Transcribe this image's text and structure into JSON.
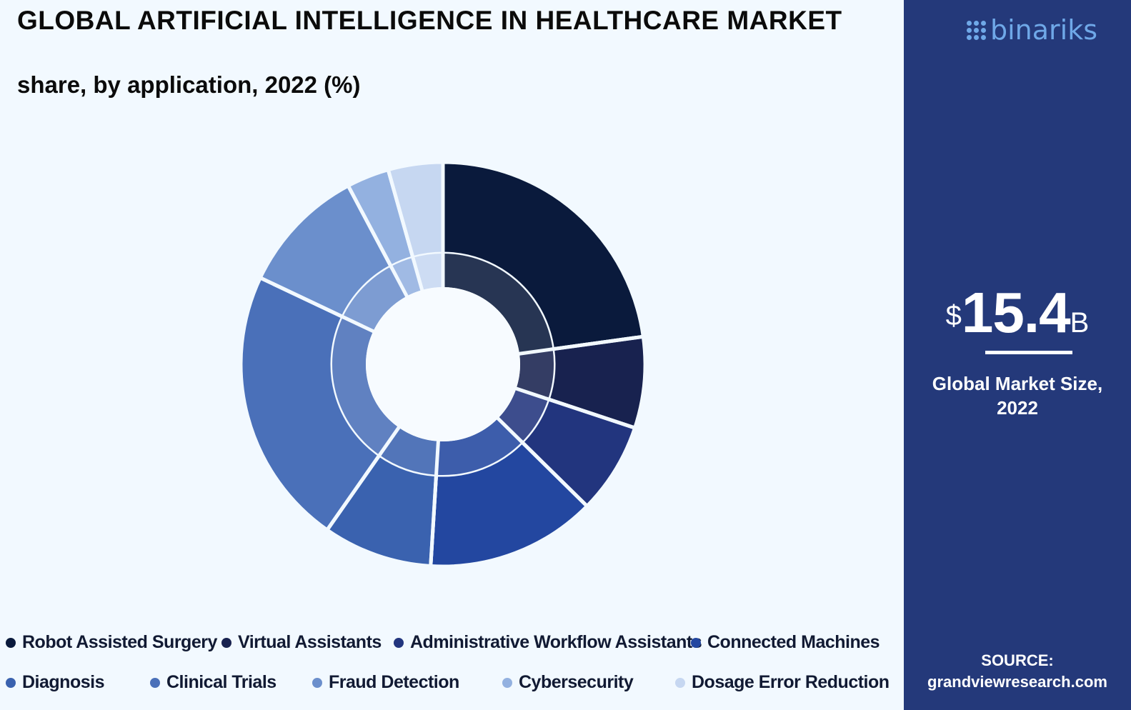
{
  "title": "GLOBAL ARTIFICIAL INTELLIGENCE IN HEALTHCARE MARKET",
  "subtitle": "share, by application, 2022 (%)",
  "chart_data": {
    "type": "pie",
    "donut": true,
    "categories": [
      "Robot Assisted Surgery",
      "Virtual Assistants",
      "Administrative Workflow Assistants",
      "Connected Machines",
      "Diagnosis",
      "Clinical Trials",
      "Fraud Detection",
      "Cybersecurity",
      "Dosage Error Reduction"
    ],
    "values": [
      23.5,
      7.5,
      7.5,
      14.0,
      9.0,
      23.0,
      10.5,
      3.5,
      4.5
    ],
    "colors": [
      "#0a1a3c",
      "#18224f",
      "#22357e",
      "#2347a0",
      "#3a62af",
      "#4a70b9",
      "#6b8fcc",
      "#93b1e0",
      "#c6d7f1"
    ],
    "legend_position": "bottom",
    "legend_rows": [
      [
        "Robot Assisted Surgery",
        "Virtual Assistants",
        "Administrative Workflow Assistants",
        "Connected Machines"
      ],
      [
        "Diagnosis",
        "Clinical Trials",
        "Fraud Detection",
        "Cybersecurity",
        "Dosage Error Reduction"
      ]
    ]
  },
  "side_panel": {
    "logo_text": "binariks",
    "currency": "$",
    "value": "15.4",
    "unit": "B",
    "caption_line1": "Global Market Size,",
    "caption_line2": "2022",
    "source_label": "SOURCE:",
    "source_url": "grandviewresearch.com"
  }
}
